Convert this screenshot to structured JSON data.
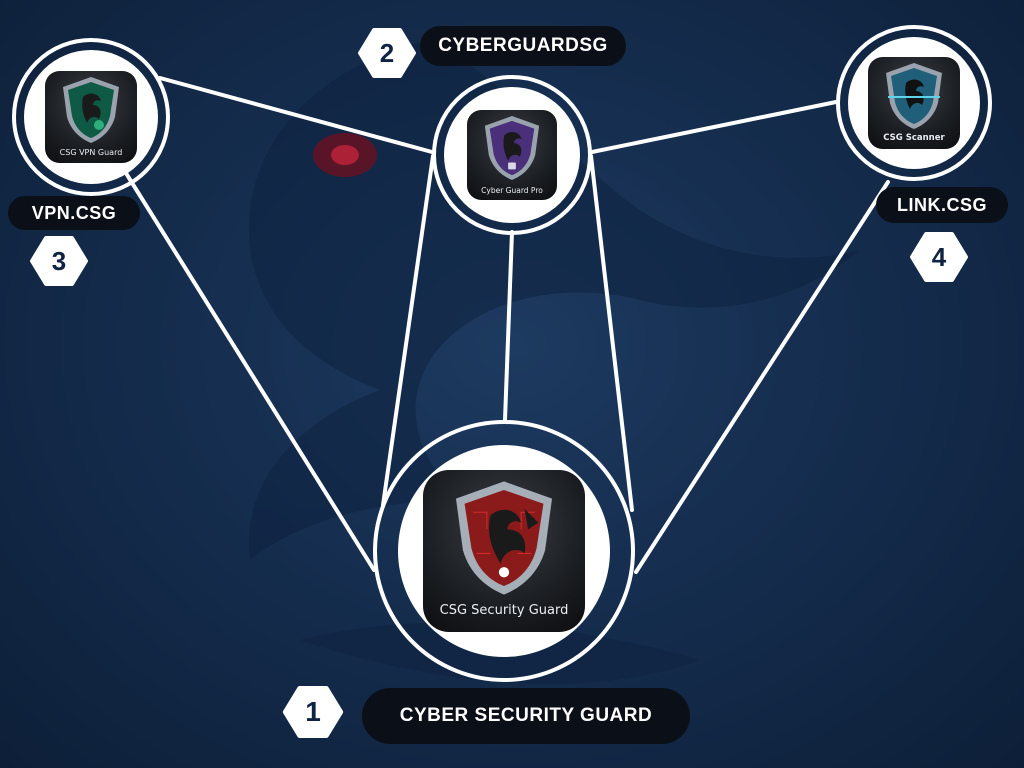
{
  "diagram": {
    "nodes": [
      {
        "id": "main",
        "number": "1",
        "title": "CYBER SECURITY GUARD",
        "app_label": "CSG Security Guard",
        "shield_color": "#8b1a1a",
        "accent": "#d42a2a"
      },
      {
        "id": "pro",
        "number": "2",
        "title": "CYBERGUARDSG",
        "app_label": "Cyber Guard Pro",
        "shield_color": "#4a2f7a",
        "accent": "#8a6ad0"
      },
      {
        "id": "vpn",
        "number": "3",
        "title": "VPN.CSG",
        "app_label": "CSG VPN Guard",
        "shield_color": "#0f5a44",
        "accent": "#2fae7c"
      },
      {
        "id": "scanner",
        "number": "4",
        "title": "LINK.CSG",
        "app_label": "CSG Scanner",
        "shield_color": "#1f5f7a",
        "accent": "#5fd3ec"
      }
    ],
    "edges": [
      [
        "vpn",
        "pro"
      ],
      [
        "vpn",
        "main"
      ],
      [
        "pro",
        "main"
      ],
      [
        "pro",
        "main"
      ],
      [
        "pro",
        "main"
      ],
      [
        "scanner",
        "pro"
      ],
      [
        "scanner",
        "main"
      ]
    ]
  },
  "colors": {
    "line": "#ffffff",
    "pill_bg": "#0b0f17",
    "badge_text": "#0f2442"
  }
}
